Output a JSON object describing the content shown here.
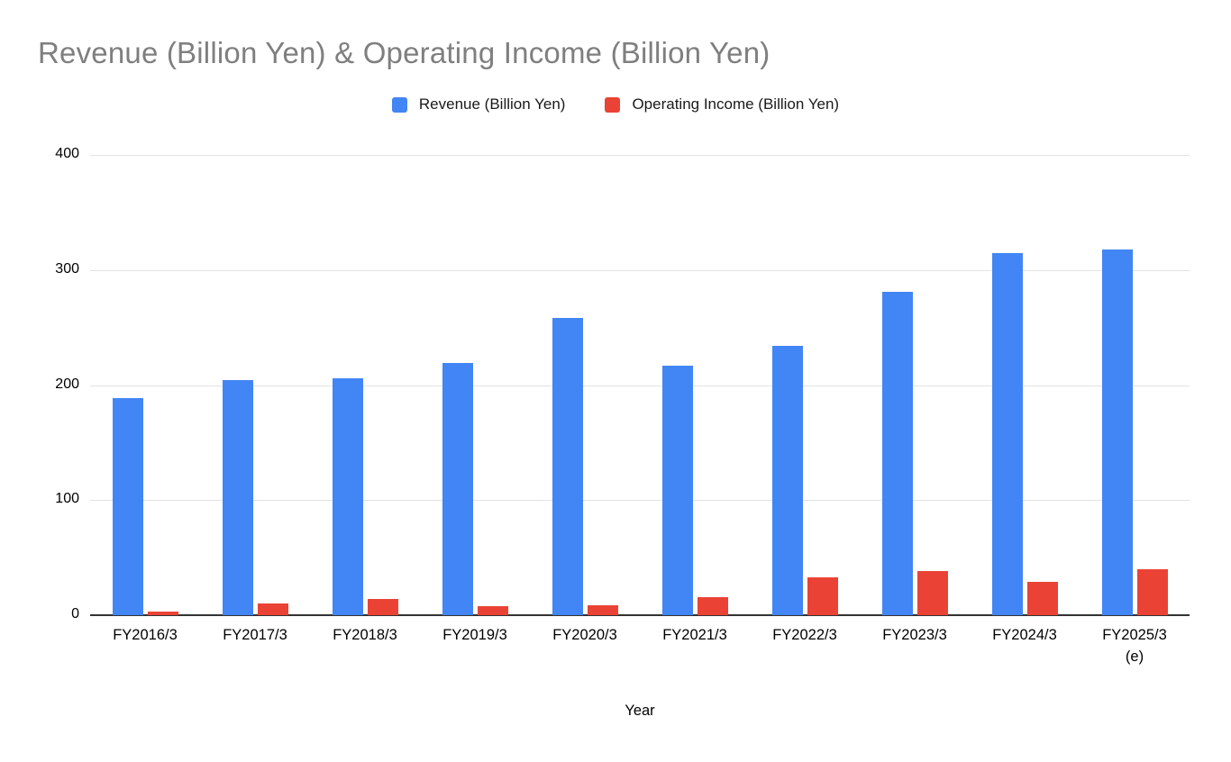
{
  "chart_data": {
    "type": "bar",
    "title": "Revenue (Billion Yen) & Operating Income (Billion Yen)",
    "xlabel": "Year",
    "ylabel": "",
    "categories": [
      "FY2016/3",
      "FY2017/3",
      "FY2018/3",
      "FY2019/3",
      "FY2020/3",
      "FY2021/3",
      "FY2022/3",
      "FY2023/3",
      "FY2024/3",
      "FY2025/3\n(e)"
    ],
    "series": [
      {
        "name": "Revenue (Billion Yen)",
        "color": "#4285f4",
        "values": [
          189,
          204,
          206,
          219,
          258,
          217,
          234,
          281,
          315,
          318
        ]
      },
      {
        "name": "Operating Income (Billion Yen)",
        "color": "#ea4335",
        "values": [
          3,
          10,
          14,
          8,
          9,
          16,
          33,
          38,
          29,
          40
        ]
      }
    ],
    "ylim": [
      0,
      400
    ],
    "yticks": [
      0,
      100,
      200,
      300,
      400
    ],
    "grid": true,
    "legend_position": "top"
  }
}
